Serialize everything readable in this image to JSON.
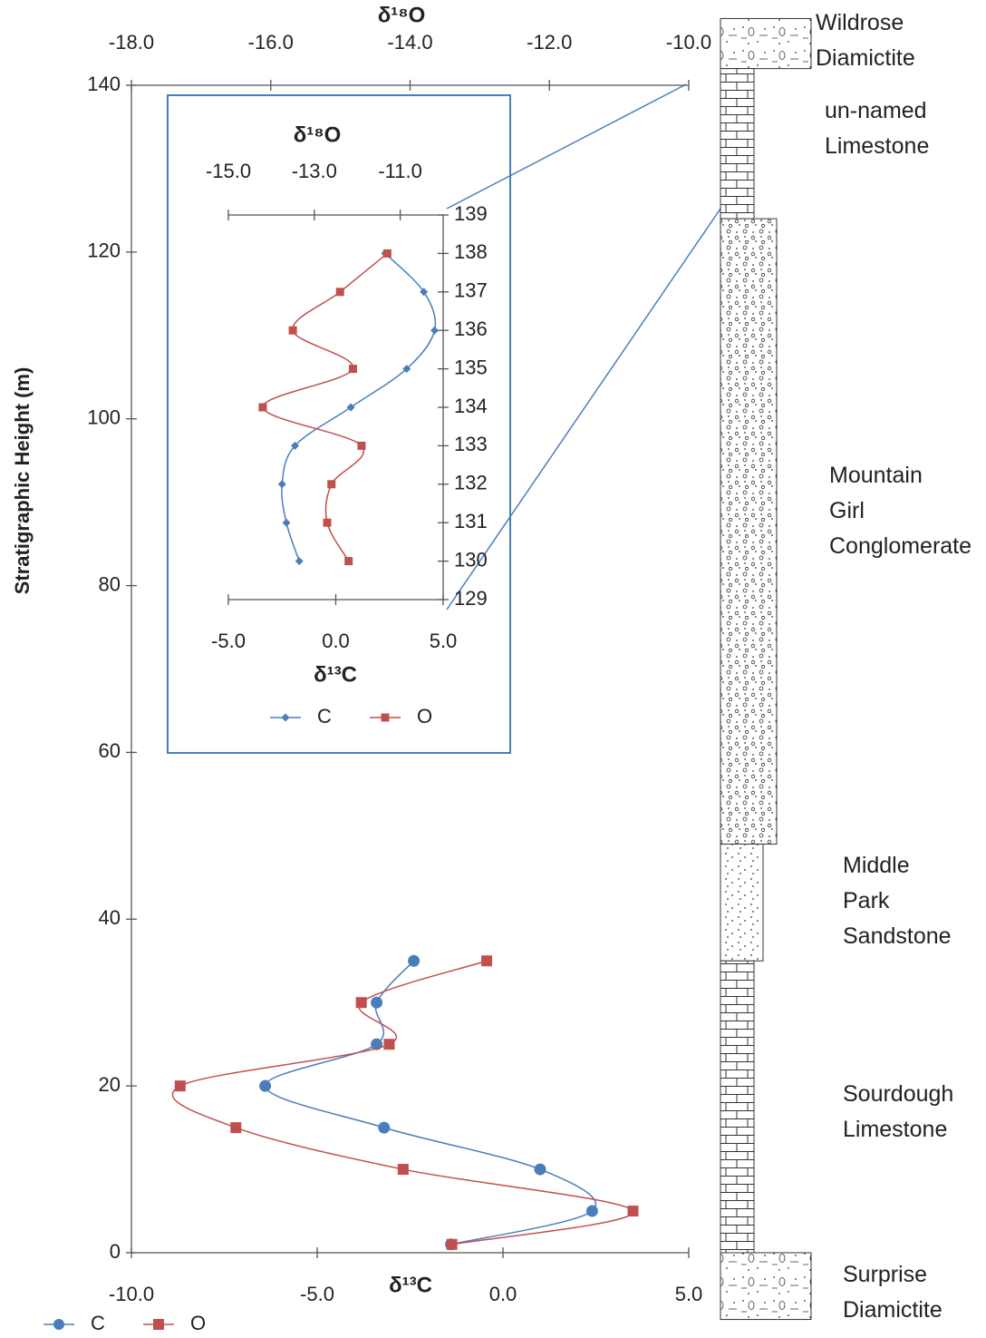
{
  "chart_data": [
    {
      "type": "line",
      "y_title": "Stratigraphic Height (m)",
      "x_title": "δ¹³C",
      "x2_title": "δ¹⁸O",
      "heights": [
        1,
        5,
        10,
        15,
        20,
        25,
        30,
        35
      ],
      "series": [
        {
          "name": "C",
          "color": "#4a7ebb",
          "marker": "circle",
          "values": [
            -1.4,
            2.4,
            1.0,
            -3.2,
            -6.4,
            -3.4,
            -3.4,
            -2.4
          ]
        },
        {
          "name": "O",
          "color": "#c0504d",
          "marker": "square",
          "axis": "x2",
          "values": [
            -13.4,
            -10.8,
            -14.1,
            -16.5,
            -17.3,
            -14.3,
            -14.7,
            -12.9
          ]
        }
      ],
      "ylim": [
        0,
        140
      ],
      "yticks": [
        0,
        20,
        40,
        60,
        80,
        100,
        120,
        140
      ],
      "xlim": [
        -10,
        5
      ],
      "xticks": [
        {
          "value": -10,
          "label": "-10.0"
        },
        {
          "value": -5,
          "label": "-5.0"
        },
        {
          "value": 0,
          "label": "0.0"
        },
        {
          "value": 5,
          "label": "5.0"
        }
      ],
      "x2lim": [
        -18,
        -10
      ],
      "x2ticks": [
        {
          "value": -18,
          "label": "-18.0"
        },
        {
          "value": -16,
          "label": "-16.0"
        },
        {
          "value": -14,
          "label": "-14.0"
        },
        {
          "value": -12,
          "label": "-12.0"
        },
        {
          "value": -10,
          "label": "-10.0"
        }
      ]
    },
    {
      "type": "line",
      "x_title": "δ¹³C",
      "x2_title": "δ¹⁸O",
      "heights": [
        130,
        131,
        132,
        133,
        134,
        135,
        136,
        137,
        138
      ],
      "series": [
        {
          "name": "C",
          "color": "#4a7ebb",
          "marker": "diamond",
          "values": [
            -1.7,
            -2.3,
            -2.5,
            -1.9,
            0.7,
            3.3,
            4.6,
            4.1,
            2.3
          ]
        },
        {
          "name": "O",
          "color": "#c0504d",
          "marker": "square",
          "axis": "x2",
          "values": [
            -12.2,
            -12.7,
            -12.6,
            -11.9,
            -14.2,
            -12.1,
            -13.5,
            -12.4,
            -11.3
          ]
        }
      ],
      "ylim": [
        129,
        139
      ],
      "yticks": [
        129,
        130,
        131,
        132,
        133,
        134,
        135,
        136,
        137,
        138,
        139
      ],
      "xlim": [
        -5,
        5
      ],
      "xticks": [
        {
          "value": -5,
          "label": "-5.0"
        },
        {
          "value": 0,
          "label": "0.0"
        },
        {
          "value": 5,
          "label": "5.0"
        }
      ],
      "x2lim": [
        -15,
        -10
      ],
      "x2ticks": [
        {
          "value": -15,
          "label": "-15.0"
        },
        {
          "value": -13,
          "label": "-13.0"
        },
        {
          "value": -11,
          "label": "-11.0"
        }
      ]
    }
  ],
  "lithology": [
    {
      "name": "Wildrose Diamictite",
      "base": 142,
      "top": 148
    },
    {
      "name": "un-named Limestone",
      "base": 124,
      "top": 142
    },
    {
      "name": "Mountain Girl Conglomerate",
      "base": 49,
      "top": 124
    },
    {
      "name": "Middle Park Sandstone",
      "base": 35,
      "top": 49
    },
    {
      "name": "Sourdough Limestone",
      "base": 0,
      "top": 35
    },
    {
      "name": "Surprise Diamictite",
      "base": -8,
      "top": 0
    }
  ]
}
